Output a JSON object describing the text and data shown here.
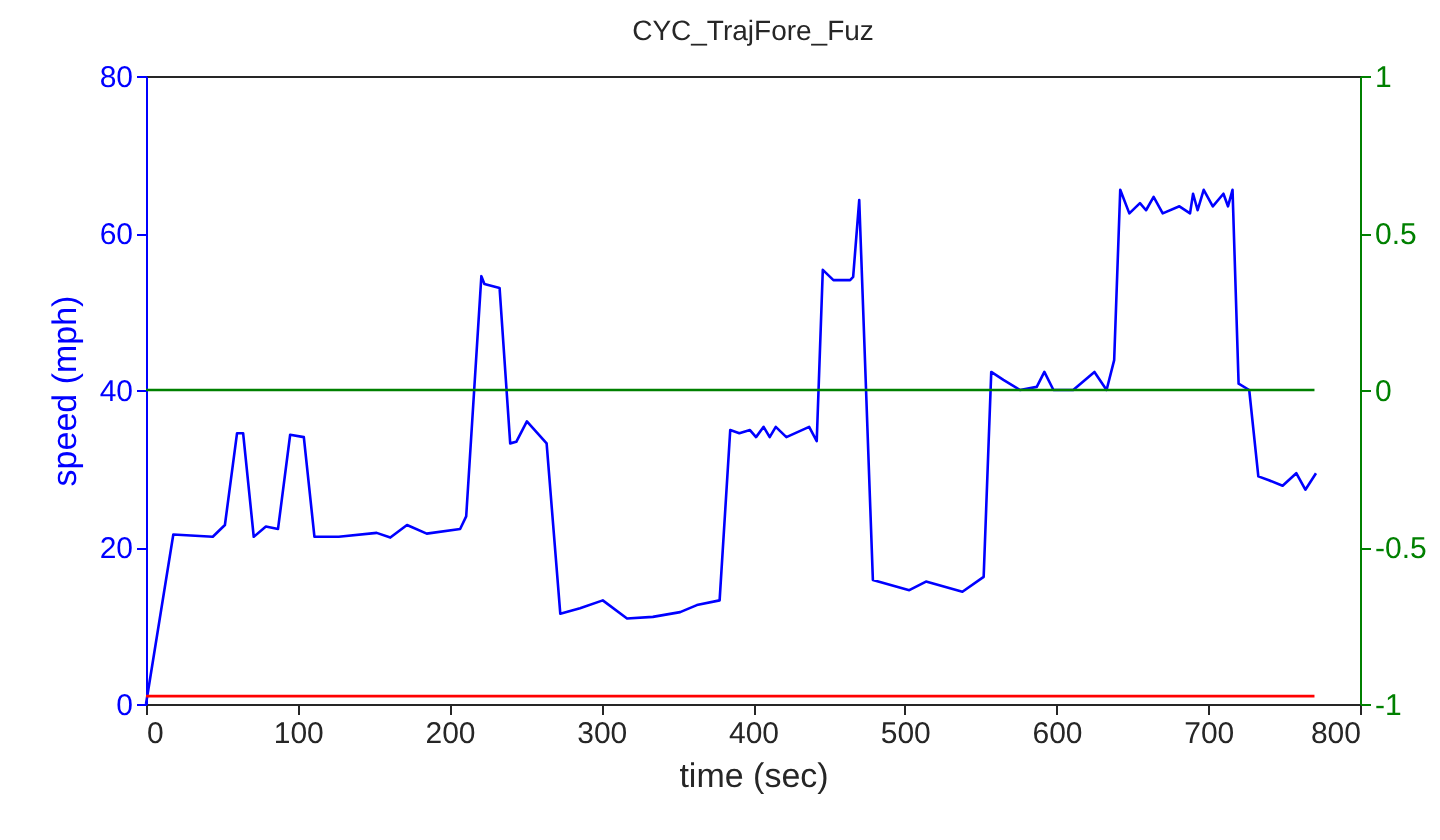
{
  "chart_data": {
    "type": "line",
    "title": "CYC_TrajFore_Fuz",
    "xlabel": "time (sec)",
    "ylabel": "speed (mph)",
    "xlim": [
      0,
      800
    ],
    "xticks": [
      0,
      100,
      200,
      300,
      400,
      500,
      600,
      700,
      800
    ],
    "ylim": [
      0,
      80
    ],
    "yticks": [
      0,
      20,
      40,
      60,
      80
    ],
    "y2lim": [
      -1,
      1
    ],
    "y2ticks": [
      -1,
      -0.5,
      0,
      0.5,
      1
    ],
    "grid": false,
    "series": [
      {
        "color": "#0000ff",
        "x": [
          0,
          18,
          44,
          52,
          60,
          64,
          71,
          79,
          87,
          95,
          104,
          111,
          127,
          152,
          161,
          172,
          185,
          207,
          211,
          221,
          223,
          233,
          240,
          244,
          251,
          264,
          273,
          286,
          301,
          317,
          334,
          352,
          363,
          378,
          385,
          391,
          398,
          402,
          407,
          411,
          415,
          422,
          437,
          442,
          446,
          453,
          464,
          466,
          470,
          479,
          503,
          514,
          538,
          552,
          557,
          565,
          576,
          587,
          592,
          598,
          611,
          625,
          633,
          638,
          642,
          648,
          655,
          659,
          664,
          670,
          681,
          688,
          690,
          693,
          697,
          703,
          710,
          713,
          716,
          720,
          727,
          733,
          740,
          749,
          758,
          764,
          771
        ],
        "values": [
          0,
          21.6,
          21.3,
          22.8,
          34.5,
          34.5,
          21.3,
          22.6,
          22.3,
          34.3,
          34,
          21.3,
          21.3,
          21.8,
          21.2,
          22.8,
          21.7,
          22.3,
          23.9,
          54.5,
          53.5,
          53,
          33.2,
          33.4,
          36,
          33.2,
          11.5,
          12.2,
          13.2,
          10.9,
          11.1,
          11.7,
          12.6,
          13.2,
          34.9,
          34.5,
          34.9,
          34,
          35.3,
          34,
          35.3,
          34,
          35.3,
          33.5,
          55.3,
          54,
          54,
          54.4,
          64.2,
          15.8,
          14.5,
          15.6,
          14.3,
          16.2,
          42.3,
          41.3,
          40,
          40.4,
          42.3,
          40,
          40,
          42.3,
          40,
          43.8,
          65.5,
          62.5,
          63.8,
          62.9,
          64.6,
          62.5,
          63.4,
          62.5,
          65,
          62.9,
          65.5,
          63.4,
          65,
          63.4,
          65.5,
          40.8,
          40,
          29,
          28.5,
          27.8,
          29.4,
          27.3,
          29.4
        ]
      },
      {
        "color": "#ff0000",
        "x": [
          0,
          770
        ],
        "values": [
          1,
          1
        ]
      },
      {
        "color": "#008000",
        "axis": "y2",
        "x": [
          0,
          770
        ],
        "values": [
          0,
          0
        ]
      }
    ]
  }
}
